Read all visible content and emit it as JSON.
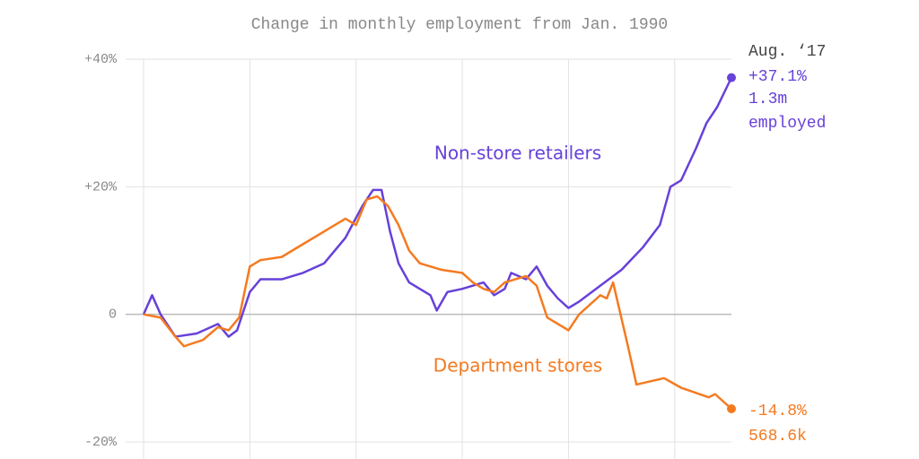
{
  "chart_data": {
    "type": "line",
    "subtitle": "Change in monthly employment from Jan. 1990",
    "annotation": "Aug. ‘17",
    "xlim": [
      1990,
      2017.67
    ],
    "xticks": [
      1990,
      1995,
      2000,
      2005,
      2010,
      2015
    ],
    "ylim": [
      -20,
      40
    ],
    "yticks": [
      {
        "value": 40,
        "label": "+40%"
      },
      {
        "value": 20,
        "label": "+20%"
      },
      0,
      {
        "value": -20,
        "label": "-20%"
      }
    ],
    "grid": true,
    "series": [
      {
        "name": "Non-store retailers",
        "color": "#6741d9",
        "x": [
          1990.0,
          1990.4,
          1990.8,
          1991.5,
          1992.5,
          1993.5,
          1994.0,
          1994.4,
          1995.0,
          1995.5,
          1996.5,
          1997.5,
          1998.5,
          1999.5,
          2000.3,
          2000.8,
          2001.2,
          2001.6,
          2002.0,
          2002.5,
          2003.5,
          2003.8,
          2004.3,
          2005.0,
          2006.0,
          2006.5,
          2007.0,
          2007.3,
          2008.0,
          2008.5,
          2009.0,
          2009.5,
          2010.0,
          2010.5,
          2011.5,
          2012.5,
          2013.5,
          2014.3,
          2014.8,
          2015.3,
          2016.0,
          2016.5,
          2017.0,
          2017.67
        ],
        "values": [
          0,
          3,
          0,
          -3.5,
          -3,
          -1.5,
          -3.5,
          -2.5,
          3.5,
          5.5,
          5.5,
          6.5,
          8,
          12,
          17,
          19.5,
          19.5,
          13,
          8,
          5,
          3,
          0.6,
          3.5,
          4,
          5,
          3,
          4,
          6.5,
          5.5,
          7.5,
          4.5,
          2.5,
          1,
          2,
          4.5,
          7,
          10.5,
          14,
          20,
          21,
          26,
          30,
          32.5,
          37.1
        ],
        "value_label": "+37.1%",
        "note": [
          "1.3m",
          "employed"
        ]
      },
      {
        "name": "Department stores",
        "color": "#f47a20",
        "x": [
          1990.0,
          1990.8,
          1991.5,
          1991.9,
          1992.8,
          1993.5,
          1994.0,
          1994.5,
          1995.0,
          1995.5,
          1996.5,
          1997.5,
          1998.5,
          1999.5,
          2000.0,
          2000.5,
          2001.0,
          2001.5,
          2002.0,
          2002.5,
          2003.0,
          2004.0,
          2005.0,
          2005.5,
          2006.0,
          2006.5,
          2007.0,
          2008.0,
          2008.5,
          2009.0,
          2009.5,
          2010.0,
          2010.5,
          2011.0,
          2011.5,
          2011.8,
          2012.1,
          2012.8,
          2013.2,
          2014.5,
          2015.3,
          2016.6,
          2016.9,
          2017.67
        ],
        "values": [
          0,
          -0.5,
          -3.5,
          -5,
          -4,
          -2,
          -2.5,
          -0.5,
          7.5,
          8.5,
          9,
          11,
          13,
          15,
          14,
          18,
          18.5,
          17,
          14,
          10,
          8,
          7,
          6.5,
          5,
          4,
          3.5,
          5,
          6,
          4.5,
          -0.5,
          -1.5,
          -2.5,
          0,
          1.5,
          3,
          2.5,
          5,
          -5,
          -11,
          -10,
          -11.5,
          -13,
          -12.5,
          -14.8
        ],
        "value_label": "-14.8%",
        "note": [
          "568.6k"
        ]
      }
    ]
  }
}
